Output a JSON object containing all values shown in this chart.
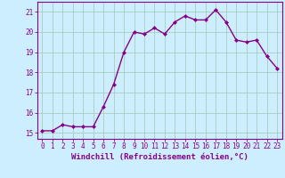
{
  "x": [
    0,
    1,
    2,
    3,
    4,
    5,
    6,
    7,
    8,
    9,
    10,
    11,
    12,
    13,
    14,
    15,
    16,
    17,
    18,
    19,
    20,
    21,
    22,
    23
  ],
  "y": [
    15.1,
    15.1,
    15.4,
    15.3,
    15.3,
    15.3,
    16.3,
    17.4,
    19.0,
    20.0,
    19.9,
    20.2,
    19.9,
    20.5,
    20.8,
    20.6,
    20.6,
    21.1,
    20.5,
    19.6,
    19.5,
    19.6,
    18.8,
    18.2
  ],
  "line_color": "#880088",
  "marker": "D",
  "marker_size": 2.0,
  "linewidth": 1.0,
  "bg_color": "#cceeff",
  "grid_color": "#aaccbb",
  "xlabel": "Windchill (Refroidissement éolien,°C)",
  "ylabel": "",
  "xlim": [
    -0.5,
    23.5
  ],
  "ylim": [
    14.7,
    21.5
  ],
  "yticks": [
    15,
    16,
    17,
    18,
    19,
    20,
    21
  ],
  "xtick_labels": [
    "0",
    "1",
    "2",
    "3",
    "4",
    "5",
    "6",
    "7",
    "8",
    "9",
    "10",
    "11",
    "12",
    "13",
    "14",
    "15",
    "16",
    "17",
    "18",
    "19",
    "20",
    "21",
    "22",
    "23"
  ],
  "tick_color": "#880088",
  "label_fontsize": 6.0,
  "tick_fontsize": 5.5,
  "spine_color": "#880088",
  "xlabel_fontsize": 6.5
}
